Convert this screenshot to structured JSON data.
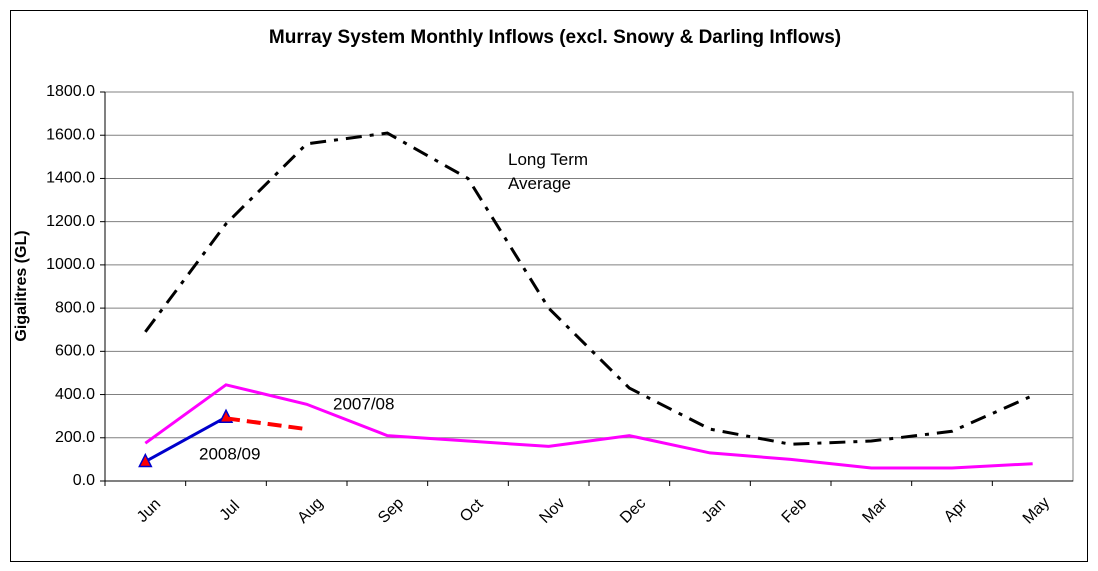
{
  "chart_data": {
    "type": "line",
    "title": "Murray System Monthly Inflows (excl. Snowy & Darling Inflows)",
    "y_label": "Gigalitres (GL)",
    "categories": [
      "Jun",
      "Jul",
      "Aug",
      "Sep",
      "Oct",
      "Nov",
      "Dec",
      "Jan",
      "Feb",
      "Mar",
      "Apr",
      "May"
    ],
    "series": [
      {
        "name": "Long Term Average",
        "color": "#000000",
        "dash": "dash-dot",
        "values": [
          690,
          1190,
          1560,
          1610,
          1400,
          800,
          430,
          240,
          170,
          185,
          230,
          395
        ]
      },
      {
        "name": "2007/08",
        "color": "#ff00ff",
        "dash": "solid",
        "values": [
          175,
          445,
          355,
          210,
          185,
          160,
          210,
          130,
          100,
          60,
          60,
          80
        ]
      },
      {
        "name": "2008/09",
        "color": "#0000cc",
        "dash": "solid",
        "marker": "triangle",
        "marker_color": "#ff0000",
        "values": [
          90,
          295,
          null,
          null,
          null,
          null,
          null,
          null,
          null,
          null,
          null,
          null
        ]
      },
      {
        "color": "#ff0000",
        "dash": "dashed",
        "values": [
          null,
          290,
          240,
          null,
          null,
          null,
          null,
          null,
          null,
          null,
          null,
          null
        ]
      }
    ],
    "ylim": [
      0,
      1800
    ],
    "yticks": [
      {
        "value": 0,
        "label": "0.0"
      },
      {
        "value": 200,
        "label": "200.0"
      },
      {
        "value": 400,
        "label": "400.0"
      },
      {
        "value": 600,
        "label": "600.0"
      },
      {
        "value": 800,
        "label": "800.0"
      },
      {
        "value": 1000,
        "label": "1000.0"
      },
      {
        "value": 1200,
        "label": "1200.0"
      },
      {
        "value": 1400,
        "label": "1400.0"
      },
      {
        "value": 1600,
        "label": "1600.0"
      },
      {
        "value": 1800,
        "label": "1800.0"
      }
    ],
    "grid": true
  }
}
